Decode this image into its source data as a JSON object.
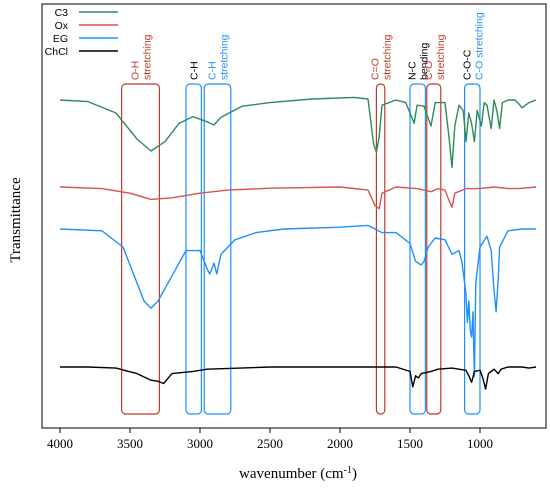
{
  "chart_data": {
    "type": "line",
    "title": "",
    "xlabel": "wavenumber (cm",
    "xlabel_sup": "-1",
    "xlabel_close": ")",
    "ylabel": "Transmittance",
    "xlim": [
      4000,
      600
    ],
    "x_reversed": true,
    "y_ticks_shown": false,
    "grid": false,
    "legend_position": "top-left",
    "x_ticks": [
      "4000",
      "3500",
      "3000",
      "2500",
      "2000",
      "1500",
      "1000"
    ],
    "x_tick_values": [
      4000,
      3500,
      3000,
      2500,
      2000,
      1500,
      1000
    ],
    "series": [
      {
        "name": "C3",
        "color": "#2e8b57",
        "points": [
          [
            4000,
            0.0
          ],
          [
            3800,
            -0.03
          ],
          [
            3600,
            -0.25
          ],
          [
            3450,
            -0.75
          ],
          [
            3350,
            -0.98
          ],
          [
            3250,
            -0.8
          ],
          [
            3150,
            -0.45
          ],
          [
            3050,
            -0.32
          ],
          [
            2950,
            -0.42
          ],
          [
            2900,
            -0.48
          ],
          [
            2850,
            -0.33
          ],
          [
            2700,
            -0.12
          ],
          [
            2500,
            -0.05
          ],
          [
            2200,
            0.02
          ],
          [
            1900,
            0.05
          ],
          [
            1800,
            0.02
          ],
          [
            1760,
            -0.85
          ],
          [
            1740,
            -1.0
          ],
          [
            1720,
            -0.7
          ],
          [
            1700,
            -0.1
          ],
          [
            1600,
            0.0
          ],
          [
            1530,
            -0.05
          ],
          [
            1470,
            -0.45
          ],
          [
            1450,
            -0.1
          ],
          [
            1400,
            -0.12
          ],
          [
            1350,
            -0.5
          ],
          [
            1320,
            -0.05
          ],
          [
            1250,
            -0.05
          ],
          [
            1220,
            -0.75
          ],
          [
            1200,
            -1.3
          ],
          [
            1180,
            -0.5
          ],
          [
            1150,
            -0.1
          ],
          [
            1120,
            -0.2
          ],
          [
            1100,
            -0.8
          ],
          [
            1080,
            -0.25
          ],
          [
            1060,
            -0.45
          ],
          [
            1040,
            -0.8
          ],
          [
            1020,
            -0.2
          ],
          [
            990,
            -0.5
          ],
          [
            970,
            -0.05
          ],
          [
            950,
            -0.1
          ],
          [
            920,
            -0.55
          ],
          [
            900,
            0.0
          ],
          [
            880,
            -0.2
          ],
          [
            860,
            -0.55
          ],
          [
            840,
            -0.05
          ],
          [
            800,
            0.0
          ],
          [
            750,
            0.0
          ],
          [
            720,
            -0.08
          ],
          [
            700,
            -0.15
          ],
          [
            650,
            -0.05
          ],
          [
            600,
            0.0
          ]
        ]
      },
      {
        "name": "Ox",
        "color": "#d9534f",
        "points": [
          [
            4000,
            0.0
          ],
          [
            3700,
            -0.05
          ],
          [
            3500,
            -0.2
          ],
          [
            3350,
            -0.4
          ],
          [
            3200,
            -0.35
          ],
          [
            3000,
            -0.2
          ],
          [
            2800,
            -0.1
          ],
          [
            2500,
            -0.04
          ],
          [
            2000,
            0.0
          ],
          [
            1800,
            -0.1
          ],
          [
            1750,
            -0.6
          ],
          [
            1720,
            -0.7
          ],
          [
            1700,
            -0.2
          ],
          [
            1600,
            0.0
          ],
          [
            1450,
            -0.05
          ],
          [
            1350,
            -0.15
          ],
          [
            1300,
            -0.05
          ],
          [
            1250,
            -0.1
          ],
          [
            1220,
            -0.45
          ],
          [
            1200,
            -0.65
          ],
          [
            1180,
            -0.2
          ],
          [
            1100,
            -0.05
          ],
          [
            1000,
            -0.05
          ],
          [
            900,
            0.0
          ],
          [
            800,
            -0.05
          ],
          [
            720,
            -0.05
          ],
          [
            600,
            0.0
          ]
        ]
      },
      {
        "name": "EG",
        "color": "#1e90ff",
        "points": [
          [
            4000,
            0.0
          ],
          [
            3700,
            -0.05
          ],
          [
            3550,
            -0.5
          ],
          [
            3450,
            -1.5
          ],
          [
            3400,
            -2.0
          ],
          [
            3350,
            -2.2
          ],
          [
            3300,
            -2.0
          ],
          [
            3200,
            -1.3
          ],
          [
            3100,
            -0.6
          ],
          [
            3000,
            -0.6
          ],
          [
            2950,
            -1.1
          ],
          [
            2930,
            -1.25
          ],
          [
            2900,
            -0.95
          ],
          [
            2880,
            -1.25
          ],
          [
            2850,
            -0.7
          ],
          [
            2750,
            -0.3
          ],
          [
            2600,
            -0.1
          ],
          [
            2400,
            0.0
          ],
          [
            2000,
            0.05
          ],
          [
            1800,
            0.1
          ],
          [
            1700,
            -0.1
          ],
          [
            1600,
            -0.1
          ],
          [
            1500,
            -0.4
          ],
          [
            1460,
            -0.9
          ],
          [
            1420,
            -1.0
          ],
          [
            1400,
            -0.9
          ],
          [
            1370,
            -0.5
          ],
          [
            1320,
            -0.25
          ],
          [
            1250,
            -0.3
          ],
          [
            1200,
            -0.7
          ],
          [
            1150,
            -0.6
          ],
          [
            1130,
            -0.9
          ],
          [
            1100,
            -1.8
          ],
          [
            1090,
            -2.6
          ],
          [
            1080,
            -2.0
          ],
          [
            1070,
            -2.8
          ],
          [
            1060,
            -3.0
          ],
          [
            1050,
            -2.3
          ],
          [
            1045,
            -3.3
          ],
          [
            1040,
            -4.1
          ],
          [
            1035,
            -2.8
          ],
          [
            1030,
            -1.5
          ],
          [
            1000,
            -0.5
          ],
          [
            950,
            -0.2
          ],
          [
            920,
            -0.6
          ],
          [
            900,
            -1.7
          ],
          [
            885,
            -2.3
          ],
          [
            870,
            -1.4
          ],
          [
            860,
            -0.5
          ],
          [
            800,
            -0.05
          ],
          [
            700,
            0.0
          ],
          [
            600,
            0.0
          ]
        ]
      },
      {
        "name": "ChCl",
        "color": "#000000",
        "points": [
          [
            4000,
            0.0
          ],
          [
            3800,
            0.0
          ],
          [
            3600,
            -0.05
          ],
          [
            3450,
            -0.3
          ],
          [
            3350,
            -0.6
          ],
          [
            3300,
            -0.65
          ],
          [
            3260,
            -0.75
          ],
          [
            3200,
            -0.3
          ],
          [
            3050,
            -0.2
          ],
          [
            2950,
            -0.1
          ],
          [
            2500,
            0.0
          ],
          [
            2000,
            0.0
          ],
          [
            1700,
            0.0
          ],
          [
            1600,
            0.0
          ],
          [
            1500,
            -0.2
          ],
          [
            1480,
            -0.9
          ],
          [
            1460,
            -0.4
          ],
          [
            1440,
            -0.5
          ],
          [
            1420,
            -0.3
          ],
          [
            1350,
            -0.2
          ],
          [
            1300,
            -0.1
          ],
          [
            1200,
            -0.05
          ],
          [
            1150,
            -0.1
          ],
          [
            1100,
            -0.15
          ],
          [
            1080,
            -0.4
          ],
          [
            1060,
            -0.7
          ],
          [
            1040,
            -0.2
          ],
          [
            1000,
            -0.15
          ],
          [
            980,
            -0.5
          ],
          [
            960,
            -1.0
          ],
          [
            940,
            -0.3
          ],
          [
            900,
            -0.1
          ],
          [
            870,
            -0.3
          ],
          [
            850,
            -0.1
          ],
          [
            800,
            0.0
          ],
          [
            700,
            0.0
          ],
          [
            650,
            -0.05
          ],
          [
            600,
            0.0
          ]
        ]
      }
    ],
    "annotations": [
      {
        "lines": [
          "O-H",
          "stretching"
        ],
        "colors": [
          "#c0392b",
          "#c0392b"
        ],
        "x_range": [
          3560,
          3290
        ],
        "box_color": "#c0392b"
      },
      {
        "lines": [
          "C-H"
        ],
        "colors": [
          "#000000"
        ],
        "x_range": [
          3100,
          2990
        ],
        "box_color": "#1e90ff"
      },
      {
        "lines": [
          "C-H",
          "stretching"
        ],
        "colors": [
          "#1e90ff",
          "#1e90ff"
        ],
        "x_range": [
          2970,
          2780
        ],
        "box_color": "#1e90ff"
      },
      {
        "lines": [
          "C=O",
          "stretching"
        ],
        "colors": [
          "#c0392b",
          "#c0392b"
        ],
        "x_range": [
          1740,
          1680
        ],
        "box_color": "#c0392b"
      },
      {
        "lines": [
          "N-C",
          "bending"
        ],
        "colors": [
          "#000000",
          "#000000"
        ],
        "x_range": [
          1500,
          1390
        ],
        "box_color": "#1e90ff"
      },
      {
        "lines": [
          "C-O",
          "stretching"
        ],
        "colors": [
          "#c0392b",
          "#c0392b"
        ],
        "x_range": [
          1380,
          1280
        ],
        "box_color": "#c0392b"
      },
      {
        "lines": [
          "C-O-C",
          "C-O stretching"
        ],
        "colors": [
          "#000000",
          "#1e90ff"
        ],
        "x_range": [
          1110,
          1000
        ],
        "box_color": "#1e90ff"
      }
    ]
  }
}
